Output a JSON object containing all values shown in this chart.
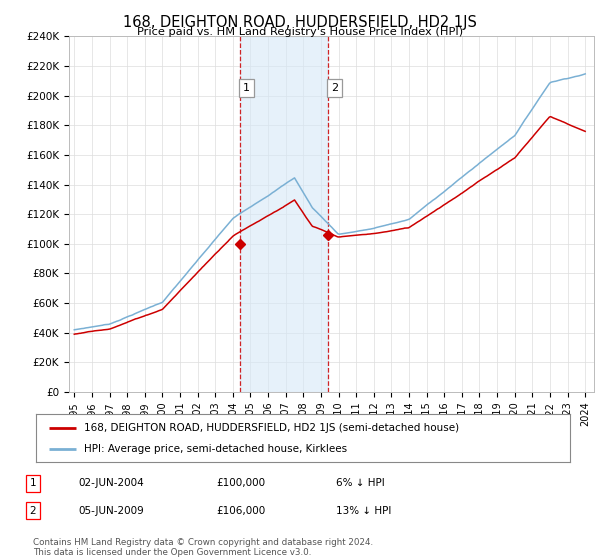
{
  "title": "168, DEIGHTON ROAD, HUDDERSFIELD, HD2 1JS",
  "subtitle": "Price paid vs. HM Land Registry's House Price Index (HPI)",
  "ylim": [
    0,
    240000
  ],
  "yticks": [
    0,
    20000,
    40000,
    60000,
    80000,
    100000,
    120000,
    140000,
    160000,
    180000,
    200000,
    220000,
    240000
  ],
  "ytick_labels": [
    "£0",
    "£20K",
    "£40K",
    "£60K",
    "£80K",
    "£100K",
    "£120K",
    "£140K",
    "£160K",
    "£180K",
    "£200K",
    "£220K",
    "£240K"
  ],
  "sale1_date": 2004.42,
  "sale1_price": 100000,
  "sale1_label": "1",
  "sale2_date": 2009.42,
  "sale2_price": 106000,
  "sale2_label": "2",
  "shade_color": "#d6e8f7",
  "shade_alpha": 0.6,
  "red_line_color": "#cc0000",
  "blue_line_color": "#7ab0d4",
  "marker_color_red": "#cc0000",
  "vline_color": "#cc0000",
  "vline_style": "--",
  "legend_line1": "168, DEIGHTON ROAD, HUDDERSFIELD, HD2 1JS (semi-detached house)",
  "legend_line2": "HPI: Average price, semi-detached house, Kirklees",
  "table_row1": [
    "1",
    "02-JUN-2004",
    "£100,000",
    "6% ↓ HPI"
  ],
  "table_row2": [
    "2",
    "05-JUN-2009",
    "£106,000",
    "13% ↓ HPI"
  ],
  "footer": "Contains HM Land Registry data © Crown copyright and database right 2024.\nThis data is licensed under the Open Government Licence v3.0.",
  "bg_color": "#ffffff",
  "grid_color": "#dddddd"
}
